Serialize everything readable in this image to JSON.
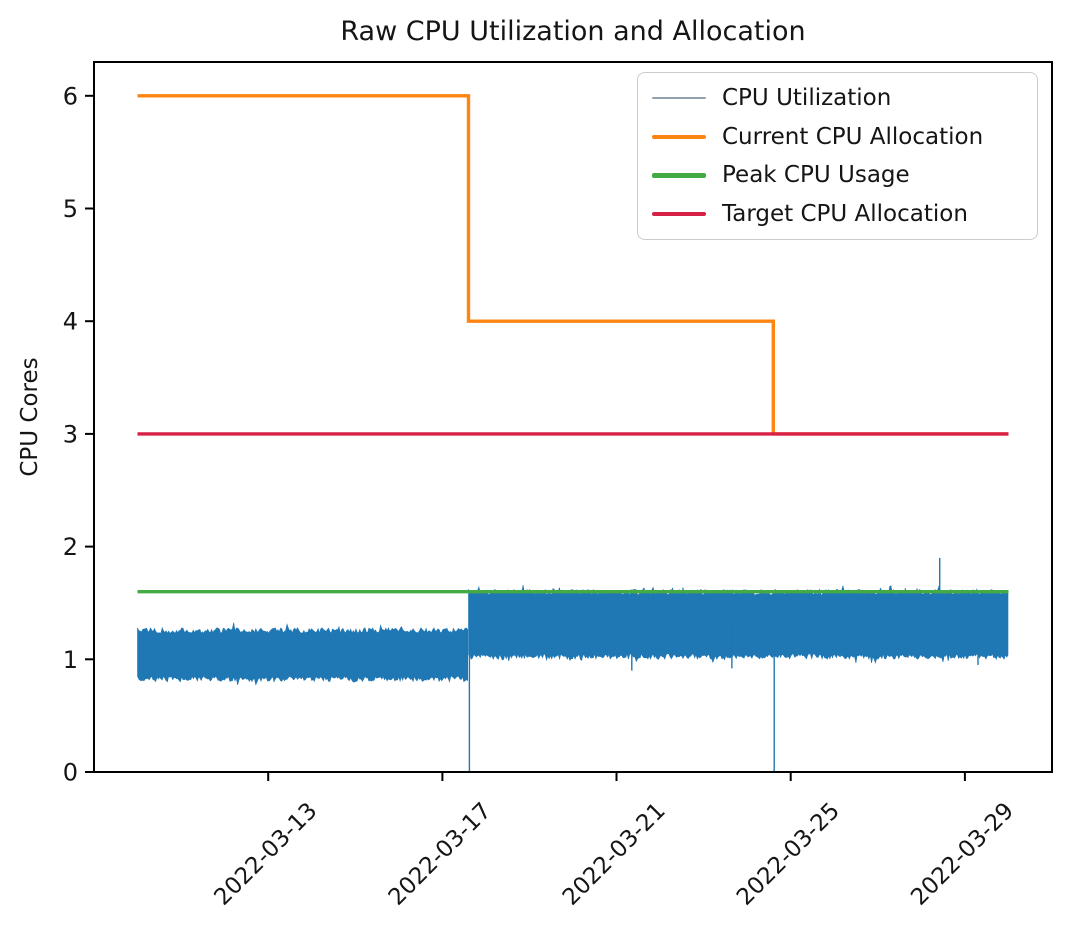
{
  "chart_data": {
    "type": "line",
    "title": "Raw CPU Utilization and Allocation",
    "xlabel": "",
    "ylabel": "CPU Cores",
    "grid": false,
    "legend_position": "top-right",
    "x_axis": {
      "range": [
        9.0,
        31.0
      ],
      "unit": "date",
      "ticks": [
        {
          "value": 13,
          "label": "2022-03-13"
        },
        {
          "value": 17,
          "label": "2022-03-17"
        },
        {
          "value": 21,
          "label": "2022-03-21"
        },
        {
          "value": 25,
          "label": "2022-03-25"
        },
        {
          "value": 29,
          "label": "2022-03-29"
        }
      ]
    },
    "y_axis": {
      "label": "CPU Cores",
      "range": [
        0,
        6.3
      ],
      "ticks": [
        {
          "value": 0,
          "label": "0"
        },
        {
          "value": 1,
          "label": "1"
        },
        {
          "value": 2,
          "label": "2"
        },
        {
          "value": 3,
          "label": "3"
        },
        {
          "value": 4,
          "label": "4"
        },
        {
          "value": 5,
          "label": "5"
        },
        {
          "value": 6,
          "label": "6"
        }
      ]
    },
    "series": [
      {
        "name": "CPU Utilization",
        "type": "noisy_band",
        "color": "#1f77b4",
        "legend_color": "#92a0ac",
        "line_width": 1.4,
        "phases": [
          {
            "x_start": 10.0,
            "x_end": 17.6,
            "y_min": 0.8,
            "y_max": 1.28
          },
          {
            "x_start": 17.6,
            "x_end": 30.0,
            "y_min": 1.0,
            "y_max": 1.62
          }
        ],
        "spikes": [
          {
            "x": 17.62,
            "y": 0
          },
          {
            "x": 24.62,
            "y": 0
          },
          {
            "x": 28.42,
            "y": 1.9
          },
          {
            "x": 21.35,
            "y": 0.9
          },
          {
            "x": 23.65,
            "y": 0.92
          },
          {
            "x": 29.3,
            "y": 0.95
          }
        ]
      },
      {
        "name": "Current CPU Allocation",
        "type": "step",
        "color": "#ff8512",
        "line_width": 3.4,
        "points": [
          [
            10,
            6
          ],
          [
            17.6,
            6
          ],
          [
            17.6,
            4
          ],
          [
            24.6,
            4
          ],
          [
            24.6,
            3
          ],
          [
            30,
            3
          ]
        ]
      },
      {
        "name": "Peak CPU Usage",
        "type": "line",
        "color": "#44ab44",
        "line_width": 3.4,
        "points": [
          [
            10,
            1.6
          ],
          [
            30,
            1.6
          ]
        ]
      },
      {
        "name": "Target CPU Allocation",
        "type": "line",
        "color": "#d62045",
        "line_width": 3.4,
        "points": [
          [
            10,
            3
          ],
          [
            30,
            3
          ]
        ]
      }
    ],
    "colors": {
      "background": "#ffffff",
      "spine": "#000000",
      "text": "#151515",
      "utilization_blue": "#1f77b4",
      "allocation_orange": "#ff8512",
      "peak_green": "#44ab44",
      "target_red": "#d62045"
    }
  }
}
